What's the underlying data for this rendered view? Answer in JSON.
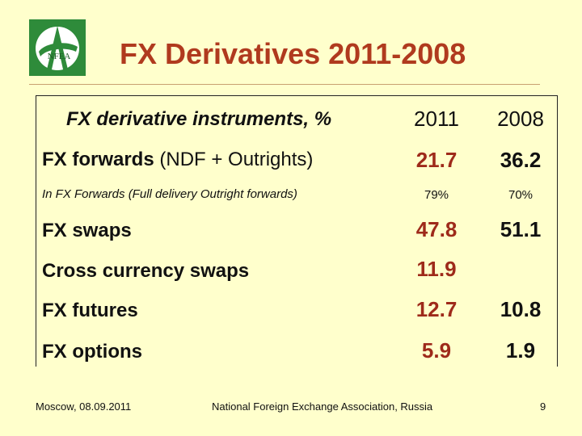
{
  "header": {
    "logo_text": "NFEA",
    "title": "FX Derivatives 2011-2008"
  },
  "table": {
    "column_header": "FX derivative instruments, %",
    "years": [
      "2011",
      "2008"
    ],
    "rows": [
      {
        "label": "FX forwards",
        "label_extra": " (NDF + Outrights)",
        "v2011": "21.7",
        "v2008": "36.2"
      },
      {
        "label": "In FX Forwards (Full delivery Outright forwards)",
        "v2011": "79%",
        "v2008": "70%"
      },
      {
        "label": "FX swaps",
        "v2011": "47.8",
        "v2008": "51.1"
      },
      {
        "label": "Cross currency swaps",
        "v2011": "11.9",
        "v2008": ""
      },
      {
        "label": "FX futures",
        "v2011": "12.7",
        "v2008": "10.8"
      },
      {
        "label": "FX options",
        "v2011": "5.9",
        "v2008": "1.9"
      }
    ]
  },
  "footer": {
    "left": "Moscow, 08.09.2011",
    "center": "National Foreign Exchange Association, Russia",
    "page": "9"
  },
  "colors": {
    "background": "#FFFFCC",
    "title": "#B03A1E",
    "value_2011": "#9E2A1A",
    "logo_green": "#2E8B3A"
  }
}
